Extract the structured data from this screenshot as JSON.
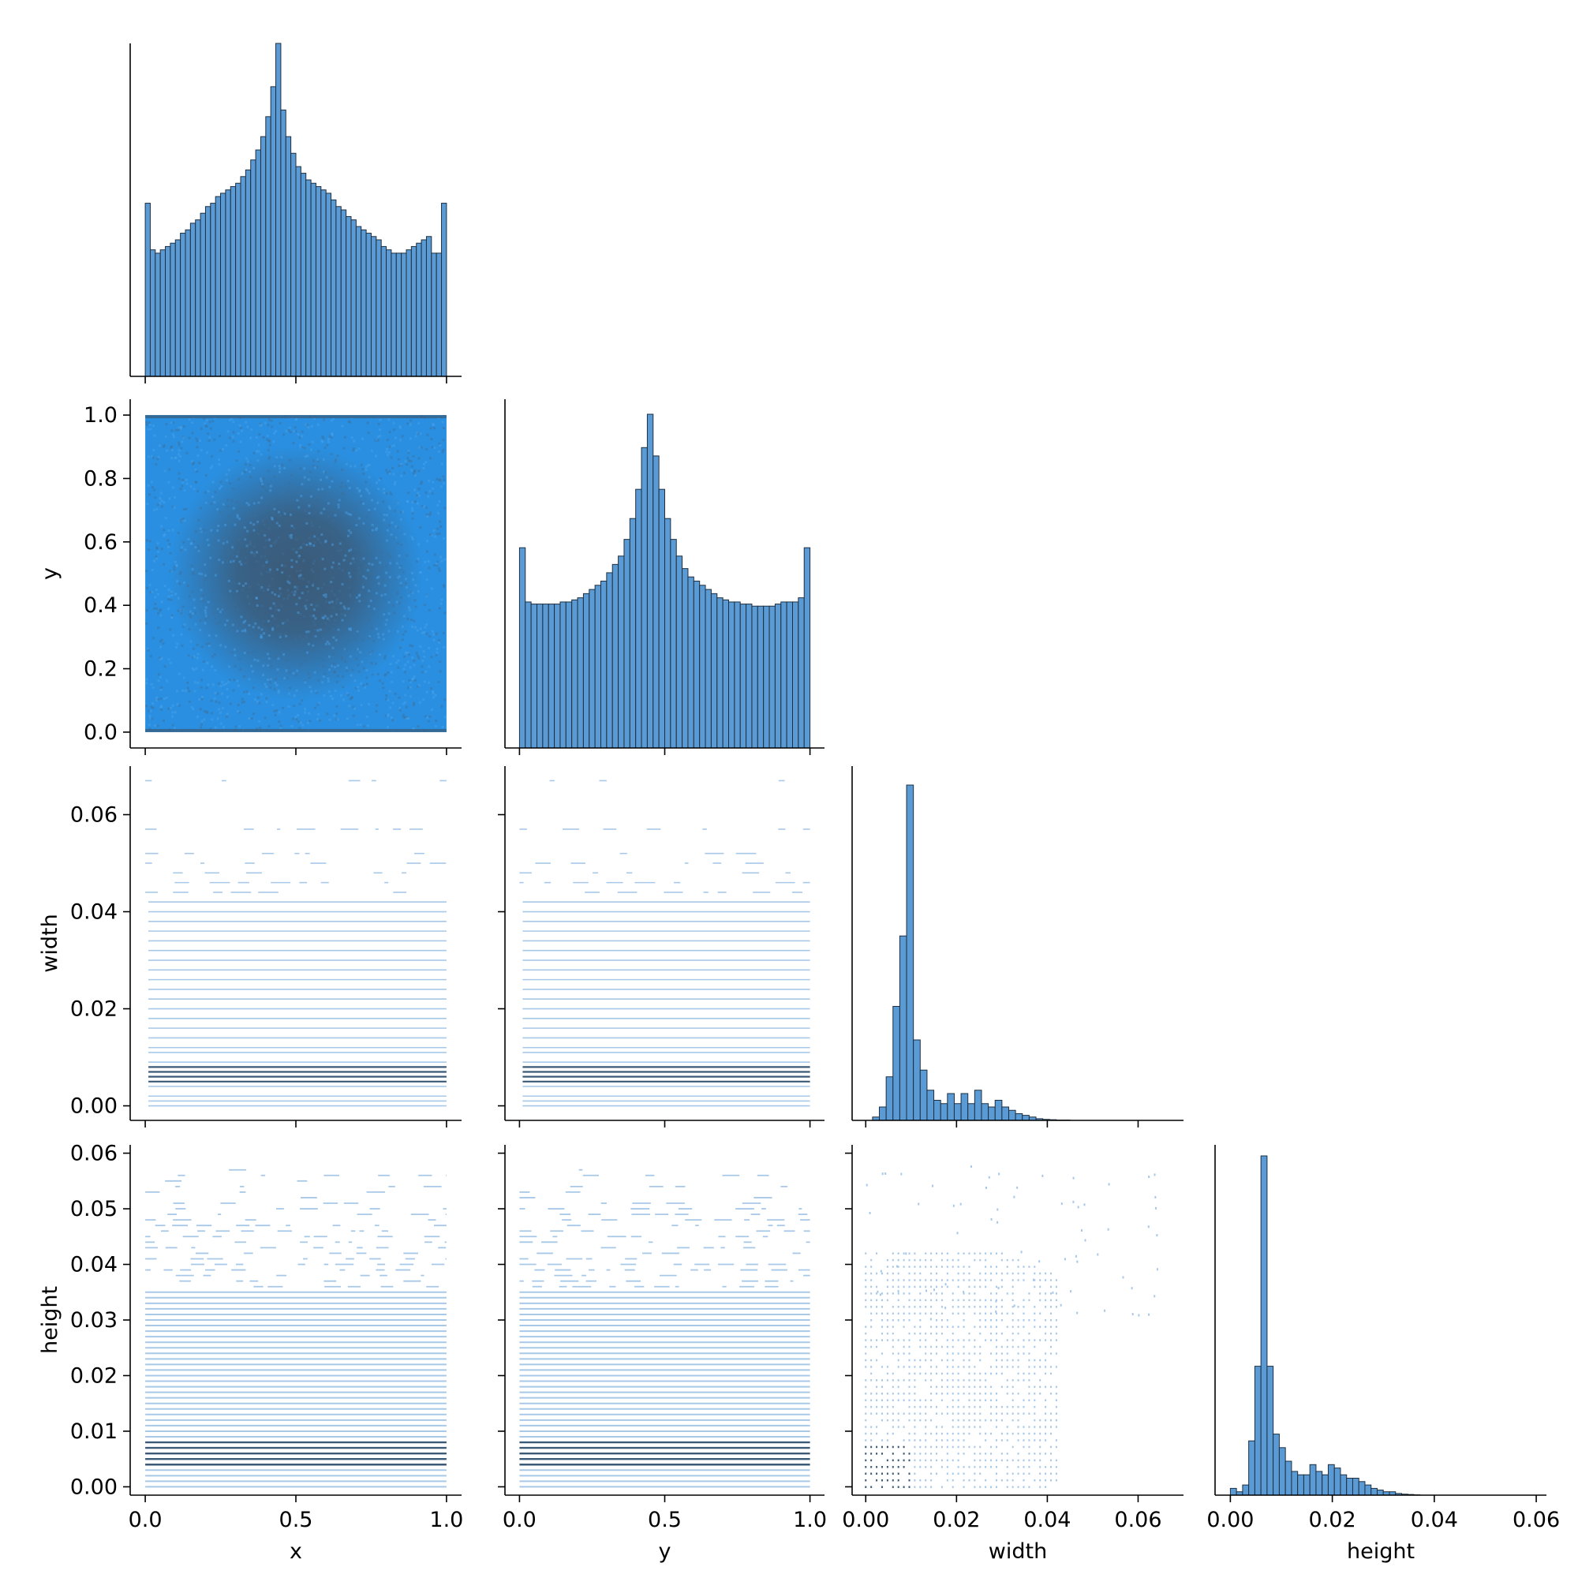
{
  "figure": {
    "type": "pairplot-corner",
    "variables": [
      "x",
      "y",
      "width",
      "height"
    ]
  },
  "colors": {
    "hist_bar": "#5b9bd5",
    "hist_edge": "#1f2f3f",
    "density_dark": "#3b5a77",
    "density_light": "#2a8fe0",
    "line_light": "#a8c8e8",
    "line_dark": "#3b5a77"
  },
  "axis_labels": {
    "x_bottom": [
      "x",
      "y",
      "width",
      "height"
    ],
    "y_left": [
      "",
      "y",
      "width",
      "height"
    ]
  },
  "ticks": {
    "unit": [
      "0.0",
      "0.5",
      "1.0"
    ],
    "unit_fine": [
      "0.0",
      "0.2",
      "0.4",
      "0.6",
      "0.8",
      "1.0"
    ],
    "width_y": [
      "0.00",
      "0.02",
      "0.04",
      "0.06"
    ],
    "height_y": [
      "0.00",
      "0.01",
      "0.02",
      "0.03",
      "0.04",
      "0.05",
      "0.06"
    ],
    "small_x": [
      "0.00",
      "0.02",
      "0.04",
      "0.06"
    ]
  },
  "chart_data": [
    {
      "type": "bar",
      "title": "",
      "xlabel": "",
      "ylabel": "",
      "xlim": [
        -0.05,
        1.05
      ],
      "categories_range": [
        0.0,
        1.0
      ],
      "bins": 60,
      "values": [
        0.52,
        0.38,
        0.37,
        0.38,
        0.39,
        0.4,
        0.41,
        0.43,
        0.44,
        0.46,
        0.47,
        0.49,
        0.51,
        0.52,
        0.54,
        0.55,
        0.56,
        0.57,
        0.58,
        0.6,
        0.62,
        0.65,
        0.68,
        0.72,
        0.78,
        0.87,
        1.0,
        0.8,
        0.72,
        0.67,
        0.63,
        0.61,
        0.59,
        0.58,
        0.57,
        0.56,
        0.55,
        0.53,
        0.51,
        0.5,
        0.48,
        0.47,
        0.45,
        0.44,
        0.43,
        0.42,
        0.41,
        0.39,
        0.38,
        0.37,
        0.37,
        0.37,
        0.38,
        0.39,
        0.4,
        0.41,
        0.42,
        0.37,
        0.37,
        0.52
      ]
    },
    {
      "type": "heatmap",
      "xlabel": "",
      "ylabel": "y",
      "xlim": [
        -0.05,
        1.05
      ],
      "ylim": [
        -0.05,
        1.05
      ],
      "center": [
        0.5,
        0.5
      ],
      "note_values": "dense uniform distribution with concentrated core at (0.5, 0.5)"
    },
    {
      "type": "bar",
      "xlabel": "",
      "ylabel": "",
      "xlim": [
        -0.05,
        1.05
      ],
      "bins": 50,
      "values": [
        0.48,
        0.35,
        0.345,
        0.345,
        0.345,
        0.345,
        0.345,
        0.35,
        0.35,
        0.355,
        0.36,
        0.37,
        0.38,
        0.39,
        0.4,
        0.42,
        0.44,
        0.46,
        0.5,
        0.55,
        0.62,
        0.72,
        0.8,
        0.7,
        0.62,
        0.55,
        0.5,
        0.46,
        0.43,
        0.41,
        0.4,
        0.39,
        0.38,
        0.37,
        0.36,
        0.355,
        0.35,
        0.35,
        0.345,
        0.345,
        0.34,
        0.34,
        0.34,
        0.34,
        0.345,
        0.35,
        0.35,
        0.35,
        0.36,
        0.48
      ]
    },
    {
      "type": "heatmap",
      "xlabel": "",
      "ylabel": "width",
      "xlim": [
        -0.05,
        1.05
      ],
      "ylim": [
        -0.003,
        0.07
      ],
      "row_levels": [
        0.0,
        0.001,
        0.002,
        0.004,
        0.005,
        0.006,
        0.007,
        0.008,
        0.009,
        0.011,
        0.012,
        0.014,
        0.016,
        0.018,
        0.02,
        0.022,
        0.024,
        0.026,
        0.028,
        0.03,
        0.032,
        0.034,
        0.036,
        0.038,
        0.04,
        0.042,
        0.044,
        0.046,
        0.048,
        0.05,
        0.052,
        0.057,
        0.067
      ]
    },
    {
      "type": "heatmap",
      "xlabel": "",
      "ylabel": "",
      "xlim": [
        -0.05,
        1.05
      ],
      "ylim": [
        -0.003,
        0.07
      ],
      "row_levels": [
        0.0,
        0.001,
        0.002,
        0.004,
        0.005,
        0.006,
        0.007,
        0.008,
        0.009,
        0.011,
        0.012,
        0.014,
        0.016,
        0.018,
        0.02,
        0.022,
        0.024,
        0.026,
        0.028,
        0.03,
        0.032,
        0.034,
        0.036,
        0.038,
        0.04,
        0.042,
        0.044,
        0.046,
        0.048,
        0.05,
        0.052,
        0.057,
        0.067
      ]
    },
    {
      "type": "bar",
      "xlabel": "",
      "ylabel": "",
      "xlim": [
        -0.003,
        0.07
      ],
      "bin_width": 0.0015,
      "bin_start": 0.0,
      "values": [
        0.0,
        0.01,
        0.04,
        0.13,
        0.34,
        0.55,
        1.0,
        0.24,
        0.15,
        0.09,
        0.06,
        0.05,
        0.08,
        0.05,
        0.08,
        0.05,
        0.09,
        0.05,
        0.04,
        0.06,
        0.04,
        0.03,
        0.02,
        0.015,
        0.01,
        0.005,
        0.003,
        0.002,
        0.001,
        0.001,
        0.0,
        0.0,
        0.0,
        0.0,
        0.0,
        0.0,
        0.0,
        0.0,
        0.0,
        0.0,
        0.0,
        0.0,
        0.0,
        0.0,
        0.0
      ]
    },
    {
      "type": "heatmap",
      "xlabel": "x",
      "ylabel": "height",
      "xlim": [
        -0.05,
        1.05
      ],
      "ylim": [
        -0.0015,
        0.0615
      ]
    },
    {
      "type": "heatmap",
      "xlabel": "y",
      "ylabel": "",
      "xlim": [
        -0.05,
        1.05
      ],
      "ylim": [
        -0.0015,
        0.0615
      ]
    },
    {
      "type": "scatter",
      "xlabel": "width",
      "ylabel": "",
      "xlim": [
        -0.003,
        0.07
      ],
      "ylim": [
        -0.0015,
        0.0615
      ]
    },
    {
      "type": "bar",
      "xlabel": "height",
      "ylabel": "",
      "xlim": [
        -0.003,
        0.062
      ],
      "bin_width": 0.0012,
      "bin_start": 0.0,
      "values": [
        0.02,
        0.01,
        0.03,
        0.16,
        0.38,
        1.0,
        0.38,
        0.18,
        0.14,
        0.1,
        0.07,
        0.06,
        0.06,
        0.09,
        0.07,
        0.06,
        0.09,
        0.08,
        0.06,
        0.05,
        0.05,
        0.04,
        0.03,
        0.02,
        0.015,
        0.01,
        0.01,
        0.005,
        0.003,
        0.002,
        0.001,
        0.0,
        0.0,
        0.0,
        0.0,
        0.0,
        0.0,
        0.0,
        0.0,
        0.0,
        0.0,
        0.0,
        0.0,
        0.0,
        0.0,
        0.0,
        0.0,
        0.0,
        0.0,
        0.0
      ]
    }
  ]
}
